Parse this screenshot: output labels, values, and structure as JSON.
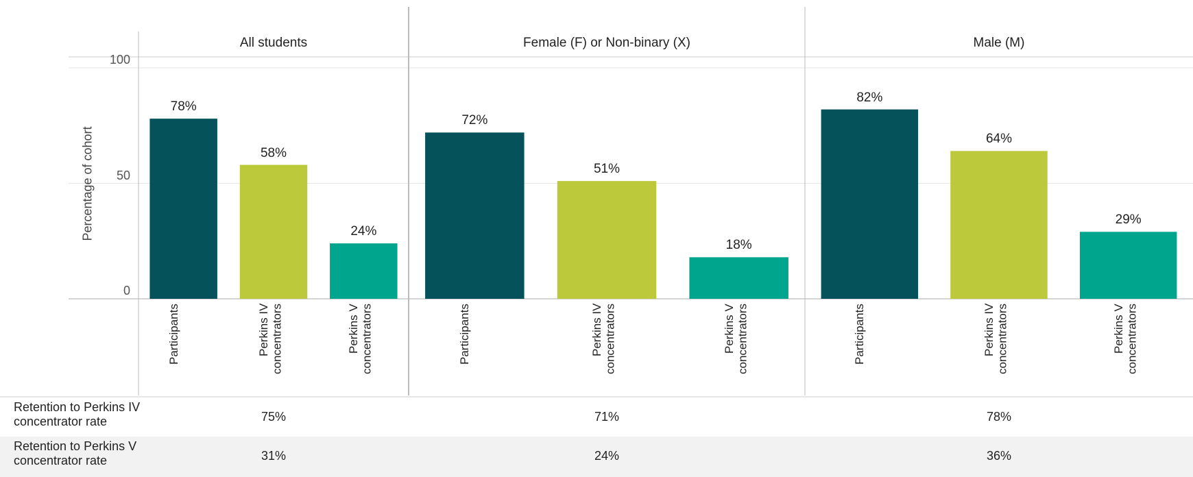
{
  "chart_data": {
    "type": "bar",
    "ylabel": "Percentage of cohort",
    "ylim": [
      0,
      100
    ],
    "yticks": [
      0,
      50,
      100
    ],
    "grid": true,
    "categories": [
      "Participants",
      "Perkins IV concentrators",
      "Perkins V concentrators"
    ],
    "colors": [
      "#05525a",
      "#bcc93a",
      "#00a58e"
    ],
    "panels": [
      {
        "title": "All students",
        "values": [
          78,
          58,
          24
        ],
        "value_labels": [
          "78%",
          "58%",
          "24%"
        ]
      },
      {
        "title": "Female (F) or Non-binary (X)",
        "values": [
          72,
          51,
          18
        ],
        "value_labels": [
          "72%",
          "51%",
          "18%"
        ]
      },
      {
        "title": "Male (M)",
        "values": [
          82,
          64,
          29
        ],
        "value_labels": [
          "82%",
          "64%",
          "29%"
        ]
      }
    ]
  },
  "table": {
    "rows": [
      {
        "label": "Retention to Perkins IV concentrator rate",
        "values": [
          "75%",
          "71%",
          "78%"
        ]
      },
      {
        "label": "Retention to Perkins V concentrator rate",
        "values": [
          "31%",
          "24%",
          "36%"
        ]
      }
    ]
  }
}
